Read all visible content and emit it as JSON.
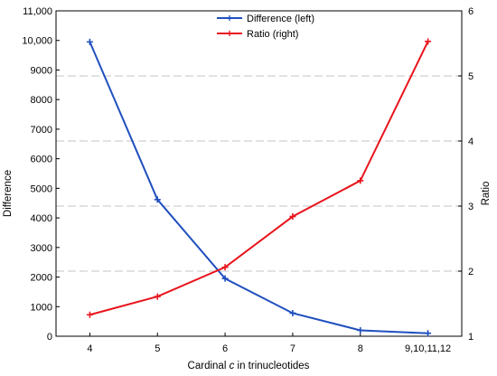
{
  "chart_data": {
    "type": "line",
    "categories": [
      "4",
      "5",
      "6",
      "7",
      "8",
      "9,10,11,12"
    ],
    "xlabel_prefix": "Cardinal ",
    "xlabel_italic": "c",
    "xlabel_suffix": " in trinucleotides",
    "ylabel_left": "Difference",
    "ylabel_right": "Ratio",
    "y_left": {
      "ylim": [
        0,
        11000
      ],
      "ticks": [
        "0",
        "1000",
        "2000",
        "3000",
        "4000",
        "5000",
        "6000",
        "7000",
        "8000",
        "9000",
        "10,000",
        "11,000"
      ]
    },
    "y_right": {
      "ylim": [
        1,
        6
      ],
      "ticks": [
        "1",
        "2",
        "3",
        "4",
        "5",
        "6"
      ]
    },
    "grid": "horizontal dashed at right-axis ticks",
    "legend_position": "top-center",
    "series": [
      {
        "name": "Difference (left)",
        "axis": "left",
        "color": "#1f4fbf",
        "values": [
          9950,
          4620,
          1950,
          780,
          200,
          100
        ]
      },
      {
        "name": "Ratio (right)",
        "axis": "right",
        "color": "#e8141c",
        "values": [
          1.33,
          1.61,
          2.06,
          2.84,
          3.39,
          5.53
        ]
      }
    ]
  }
}
